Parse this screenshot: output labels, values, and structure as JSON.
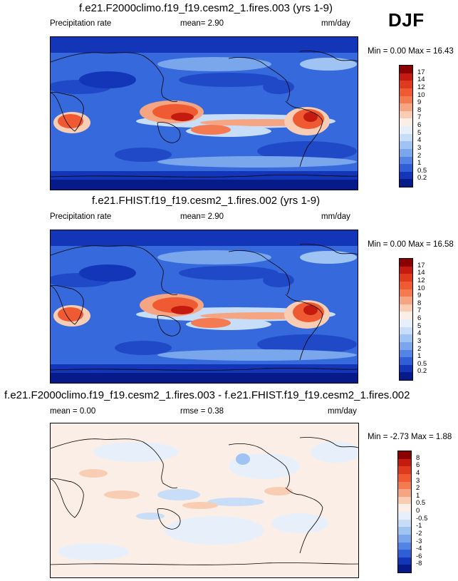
{
  "season": "DJF",
  "panels": [
    {
      "title": "f.e21.F2000climo.f19_f19.cesm2_1.fires.003 (yrs 1-9)",
      "left_label": "Precipitation rate",
      "stat_text": "mean=  2.90",
      "units": "mm/day",
      "minmax": "Min =   0.00 Max =  16.43",
      "colorbar_labels": [
        "17",
        "14",
        "12",
        "10",
        "9",
        "8",
        "7",
        "6",
        "5",
        "4",
        "3",
        "2",
        "1",
        "0.5",
        "0.2"
      ],
      "colorbar_colors": [
        "#8b0000",
        "#c41a10",
        "#df3a1e",
        "#ef5a32",
        "#f47a52",
        "#f6a582",
        "#f9cdb3",
        "#fbeee6",
        "#e7f0fa",
        "#c8ddf7",
        "#9fc3f2",
        "#7aa6ec",
        "#5383e4",
        "#2f5ed6",
        "#1336b8",
        "#061a8a"
      ],
      "palette": "precip"
    },
    {
      "title": "f.e21.FHIST.f19_f19.cesm2_1.fires.002 (yrs 1-9)",
      "left_label": "Precipitation rate",
      "stat_text": "mean=  2.90",
      "units": "mm/day",
      "minmax": "Min =   0.00 Max =  16.58",
      "colorbar_labels": [
        "17",
        "14",
        "12",
        "10",
        "9",
        "8",
        "7",
        "6",
        "5",
        "4",
        "3",
        "2",
        "1",
        "0.5",
        "0.2"
      ],
      "colorbar_colors": [
        "#8b0000",
        "#c41a10",
        "#df3a1e",
        "#ef5a32",
        "#f47a52",
        "#f6a582",
        "#f9cdb3",
        "#fbeee6",
        "#e7f0fa",
        "#c8ddf7",
        "#9fc3f2",
        "#7aa6ec",
        "#5383e4",
        "#2f5ed6",
        "#1336b8",
        "#061a8a"
      ],
      "palette": "precip"
    },
    {
      "title": "f.e21.F2000climo.f19_f19.cesm2_1.fires.003 - f.e21.FHIST.f19_f19.cesm2_1.fires.002",
      "left_label": "mean =   0.00",
      "stat_text": "rmse =  0.38",
      "units": "mm/day",
      "minmax": "Min =  -2.73 Max =   1.88",
      "colorbar_labels": [
        "8",
        "6",
        "4",
        "3",
        "2",
        "1",
        "0.5",
        "0",
        "-0.5",
        "-1",
        "-2",
        "-3",
        "-4",
        "-6",
        "-8"
      ],
      "colorbar_colors": [
        "#8b0000",
        "#c41a10",
        "#df3a1e",
        "#ef5a32",
        "#f47a52",
        "#f6a582",
        "#f9cdb3",
        "#fbeee6",
        "#e7f0fa",
        "#c8ddf7",
        "#9fc3f2",
        "#7aa6ec",
        "#5383e4",
        "#2f5ed6",
        "#1336b8",
        "#061a8a"
      ],
      "palette": "diff"
    }
  ]
}
